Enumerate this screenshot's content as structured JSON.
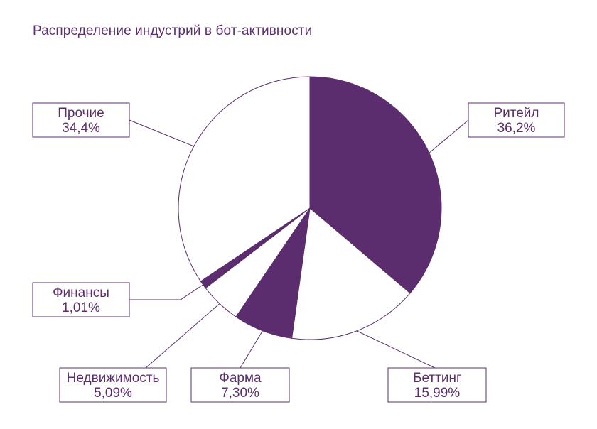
{
  "title": "Распределение индустрий в бот-активности",
  "colors": {
    "accent": "#5c2d6e",
    "background": "#ffffff"
  },
  "chart_data": {
    "type": "pie",
    "title": "Распределение индустрий в бот-активности",
    "slices": [
      {
        "name": "Ритейл",
        "value": 36.2,
        "label": "36,2%",
        "fill": "#5c2d6e"
      },
      {
        "name": "Беттинг",
        "value": 15.99,
        "label": "15,99%",
        "fill": "#ffffff"
      },
      {
        "name": "Фарма",
        "value": 7.3,
        "label": "7,30%",
        "fill": "#5c2d6e"
      },
      {
        "name": "Недвижимость",
        "value": 5.09,
        "label": "5,09%",
        "fill": "#ffffff"
      },
      {
        "name": "Финансы",
        "value": 1.01,
        "label": "1,01%",
        "fill": "#5c2d6e"
      },
      {
        "name": "Прочие",
        "value": 34.4,
        "label": "34,4%",
        "fill": "#ffffff"
      }
    ]
  }
}
